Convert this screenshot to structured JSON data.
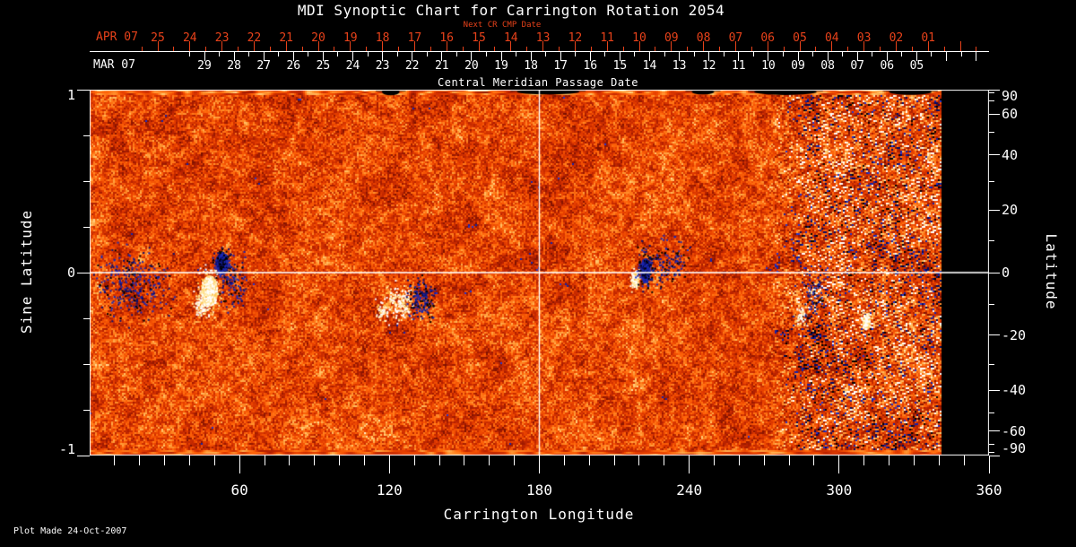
{
  "title": "MDI Synoptic Chart for Carrington Rotation 2054",
  "footer_note": "Plot Made 24-Oct-2007",
  "colors": {
    "background": "#000000",
    "axis_text": "#ffffff",
    "next_cr_red": "#e8421a"
  },
  "top_axis": {
    "next_cr_caption": "Next CR CMP Date",
    "next_cr_month": "APR 07",
    "next_cr_days": [
      "25",
      "24",
      "23",
      "22",
      "21",
      "20",
      "19",
      "18",
      "17",
      "16",
      "15",
      "14",
      "13",
      "12",
      "11",
      "10",
      "09",
      "08",
      "07",
      "06",
      "05",
      "04",
      "03",
      "02",
      "01"
    ],
    "cmp_month": "MAR 07",
    "cmp_days": [
      "29",
      "28",
      "27",
      "26",
      "25",
      "24",
      "23",
      "22",
      "21",
      "20",
      "19",
      "18",
      "17",
      "16",
      "15",
      "14",
      "13",
      "12",
      "11",
      "10",
      "09",
      "08",
      "07",
      "06",
      "05"
    ],
    "cmp_caption": "Central Meridian Passage Date"
  },
  "chart_data": {
    "type": "heatmap",
    "subtype": "solar-magnetogram-synoptic-map",
    "title": "MDI Synoptic Chart for Carrington Rotation 2054",
    "carrington_rotation": 2054,
    "xlabel": "Carrington Longitude",
    "ylabel_left": "Sine Latitude",
    "ylabel_right": "Latitude",
    "x_range_deg": [
      0,
      360
    ],
    "sine_latitude_range": [
      -1,
      1
    ],
    "x_major_ticks": [
      60,
      120,
      180,
      240,
      300,
      360
    ],
    "x_minor_step_deg": 10,
    "left_axis_major_ticks": [
      1,
      0,
      -1
    ],
    "left_axis_minor_step": 0.25,
    "right_axis_major_ticks": [
      90,
      60,
      40,
      20,
      0,
      -20,
      -40,
      -60,
      -90
    ],
    "right_axis_minor_ticks": [
      80,
      70,
      50,
      30,
      10,
      -10,
      -30,
      -50,
      -70,
      -80
    ],
    "reference_lines": {
      "longitude_deg": 180,
      "sine_latitude": 0
    },
    "data_coverage_lon_deg": [
      0,
      341
    ],
    "background_field": "mottled red-orange weak positive field with sparse navy negative speckles",
    "noisy_band_lon_deg": [
      270,
      341
    ],
    "polar_gaps_lon_deg": [
      [
        117,
        124
      ],
      [
        171,
        196
      ],
      [
        241,
        250
      ],
      [
        266,
        291
      ],
      [
        320,
        337
      ]
    ],
    "active_regions": [
      {
        "lon": 18,
        "sin_lat": -0.06,
        "polarity": "negative",
        "rx_deg": 13,
        "ry_sin": 0.16,
        "count": 300,
        "core": false
      },
      {
        "lon": 48,
        "sin_lat": -0.1,
        "polarity": "positive",
        "rx_deg": 4,
        "ry_sin": 0.1,
        "count": 260,
        "core": true
      },
      {
        "lon": 53,
        "sin_lat": 0.05,
        "polarity": "negative",
        "rx_deg": 3,
        "ry_sin": 0.07,
        "count": 140,
        "core": true
      },
      {
        "lon": 45,
        "sin_lat": -0.18,
        "polarity": "positive",
        "rx_deg": 3,
        "ry_sin": 0.06,
        "count": 90,
        "core": false
      },
      {
        "lon": 58,
        "sin_lat": -0.05,
        "polarity": "negative",
        "rx_deg": 5,
        "ry_sin": 0.13,
        "count": 110,
        "core": false
      },
      {
        "lon": 124,
        "sin_lat": -0.17,
        "polarity": "positive",
        "rx_deg": 5,
        "ry_sin": 0.09,
        "count": 190,
        "core": false
      },
      {
        "lon": 133,
        "sin_lat": -0.14,
        "polarity": "negative",
        "rx_deg": 5,
        "ry_sin": 0.1,
        "count": 170,
        "core": false
      },
      {
        "lon": 117,
        "sin_lat": -0.21,
        "polarity": "positive",
        "rx_deg": 2,
        "ry_sin": 0.05,
        "count": 45,
        "core": false
      },
      {
        "lon": 218.5,
        "sin_lat": -0.04,
        "polarity": "positive",
        "rx_deg": 1.8,
        "ry_sin": 0.05,
        "count": 70,
        "core": true
      },
      {
        "lon": 222.5,
        "sin_lat": 0.01,
        "polarity": "negative",
        "rx_deg": 2.5,
        "ry_sin": 0.08,
        "count": 150,
        "core": true
      },
      {
        "lon": 231,
        "sin_lat": 0.06,
        "polarity": "negative",
        "rx_deg": 9,
        "ry_sin": 0.12,
        "count": 140,
        "core": false
      },
      {
        "lon": 285,
        "sin_lat": -0.24,
        "polarity": "positive",
        "rx_deg": 2.5,
        "ry_sin": 0.05,
        "count": 55,
        "core": false
      },
      {
        "lon": 290,
        "sin_lat": -0.12,
        "polarity": "negative",
        "rx_deg": 4,
        "ry_sin": 0.1,
        "count": 60,
        "core": false
      },
      {
        "lon": 311,
        "sin_lat": -0.27,
        "polarity": "positive",
        "rx_deg": 2,
        "ry_sin": 0.05,
        "count": 55,
        "core": true
      }
    ]
  }
}
